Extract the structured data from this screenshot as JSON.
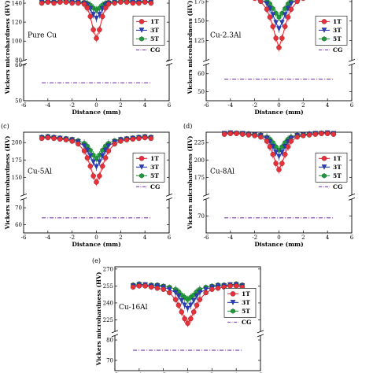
{
  "chart_data": [
    {
      "type": "scatter",
      "panel_label": "",
      "sample_label": "Pure Cu",
      "xlabel": "Distance (mm)",
      "ylabel": "Vickers microhardness (HV)",
      "xlim": [
        -6,
        6
      ],
      "xticks": [
        "-6",
        "-4",
        "-2",
        "0",
        "2",
        "4",
        "6"
      ],
      "upper_range": [
        80,
        150
      ],
      "upper_ticks": [
        "80",
        "100",
        "120",
        "140"
      ],
      "lower_range": [
        50,
        60
      ],
      "lower_ticks": [
        "50",
        "60"
      ],
      "x": [
        -4.5,
        -4,
        -3.5,
        -3,
        -2.5,
        -2,
        -1.5,
        -1,
        -0.75,
        -0.5,
        -0.25,
        0,
        0.25,
        0.5,
        0.75,
        1,
        1.5,
        2,
        2.5,
        3,
        3.5,
        4,
        4.5
      ],
      "series": [
        {
          "name": "1T",
          "values": [
            140,
            141,
            140,
            141,
            141,
            140,
            140,
            139,
            135,
            126,
            112,
            103,
            112,
            126,
            135,
            139,
            140,
            141,
            141,
            140,
            140,
            141,
            140
          ]
        },
        {
          "name": "3T",
          "values": [
            141,
            141,
            142,
            141,
            141,
            142,
            141,
            140,
            138,
            134,
            128,
            124,
            128,
            134,
            138,
            140,
            141,
            141,
            142,
            141,
            141,
            141,
            141
          ]
        },
        {
          "name": "5T",
          "values": [
            142,
            142,
            142,
            142,
            143,
            142,
            142,
            141,
            140,
            138,
            135,
            133,
            135,
            138,
            140,
            141,
            142,
            142,
            143,
            142,
            142,
            142,
            142
          ]
        }
      ],
      "cg": 55,
      "legend": [
        "1T",
        "3T",
        "5T",
        "CG"
      ],
      "legend_position": "right",
      "colors": {
        "1T": "#e8303a",
        "3T": "#2a3fbf",
        "5T": "#1f9a3a",
        "CG": "#7a3fb0"
      }
    },
    {
      "type": "scatter",
      "panel_label": "",
      "sample_label": "Cu-2.3Al",
      "xlabel": "Distance (mm)",
      "ylabel": "Vickers microhardness (HV)",
      "xlim": [
        -6,
        6
      ],
      "xticks": [
        "-6",
        "-4",
        "-2",
        "0",
        "2",
        "4",
        "6"
      ],
      "upper_range": [
        100,
        185
      ],
      "upper_ticks": [
        "125",
        "150",
        "175"
      ],
      "lower_range": [
        45,
        65
      ],
      "lower_ticks": [
        "50",
        "60"
      ],
      "x": [
        -4.5,
        -4,
        -3.5,
        -3,
        -2.5,
        -2,
        -1.5,
        -1,
        -0.75,
        -0.5,
        -0.25,
        0,
        0.25,
        0.5,
        0.75,
        1,
        1.5,
        2,
        2.5,
        3,
        3.5,
        4,
        4.5
      ],
      "series": [
        {
          "name": "1T",
          "values": [
            182,
            183,
            183,
            182,
            181,
            179,
            175,
            165,
            155,
            143,
            128,
            116,
            128,
            143,
            155,
            165,
            175,
            179,
            181,
            182,
            183,
            183,
            182
          ]
        },
        {
          "name": "3T",
          "values": [
            183,
            184,
            184,
            183,
            182,
            181,
            178,
            172,
            166,
            158,
            148,
            140,
            148,
            158,
            166,
            172,
            178,
            181,
            182,
            183,
            184,
            184,
            183
          ]
        },
        {
          "name": "5T",
          "values": [
            184,
            184,
            185,
            184,
            183,
            182,
            180,
            176,
            172,
            166,
            160,
            155,
            160,
            166,
            172,
            176,
            180,
            182,
            183,
            184,
            185,
            184,
            184
          ]
        }
      ],
      "cg": 57,
      "legend": [
        "1T",
        "3T",
        "5T",
        "CG"
      ],
      "legend_position": "right",
      "colors": {
        "1T": "#e8303a",
        "3T": "#2a3fbf",
        "5T": "#1f9a3a",
        "CG": "#7a3fb0"
      }
    },
    {
      "type": "scatter",
      "panel_label": "(c)",
      "sample_label": "Cu-5Al",
      "xlabel": "Distance (mm)",
      "ylabel": "Vickers microhardness (HV)",
      "xlim": [
        -6,
        6
      ],
      "xticks": [
        "-6",
        "-4",
        "-2",
        "0",
        "2",
        "4",
        "6"
      ],
      "upper_range": [
        125,
        215
      ],
      "upper_ticks": [
        "150",
        "175",
        "200"
      ],
      "lower_range": [
        55,
        75
      ],
      "lower_ticks": [
        "60",
        "70"
      ],
      "x": [
        -4.5,
        -4,
        -3.5,
        -3,
        -2.5,
        -2,
        -1.5,
        -1,
        -0.75,
        -0.5,
        -0.25,
        0,
        0.25,
        0.5,
        0.75,
        1,
        1.5,
        2,
        2.5,
        3,
        3.5,
        4,
        4.5
      ],
      "series": [
        {
          "name": "1T",
          "values": [
            206,
            207,
            206,
            205,
            204,
            202,
            198,
            188,
            178,
            166,
            152,
            143,
            152,
            166,
            178,
            188,
            198,
            202,
            204,
            205,
            206,
            207,
            206
          ]
        },
        {
          "name": "3T",
          "values": [
            207,
            208,
            207,
            206,
            205,
            204,
            201,
            195,
            189,
            181,
            172,
            165,
            172,
            181,
            189,
            195,
            201,
            204,
            205,
            206,
            207,
            208,
            207
          ]
        },
        {
          "name": "5T",
          "values": [
            208,
            209,
            208,
            207,
            206,
            205,
            203,
            199,
            195,
            189,
            182,
            177,
            182,
            189,
            195,
            199,
            203,
            205,
            206,
            207,
            208,
            209,
            208
          ]
        }
      ],
      "cg": 64,
      "legend": [
        "1T",
        "3T",
        "5T",
        "CG"
      ],
      "legend_position": "right",
      "colors": {
        "1T": "#e8303a",
        "3T": "#2a3fbf",
        "5T": "#1f9a3a",
        "CG": "#7a3fb0"
      }
    },
    {
      "type": "scatter",
      "panel_label": "(d)",
      "sample_label": "Cu-8Al",
      "xlabel": "Distance (mm)",
      "ylabel": "Vickers microhardness (HV)",
      "xlim": [
        -6,
        6
      ],
      "xticks": [
        "-6",
        "-4",
        "-2",
        "0",
        "2",
        "4",
        "6"
      ],
      "upper_range": [
        150,
        240
      ],
      "upper_ticks": [
        "175",
        "200",
        "225"
      ],
      "lower_range": [
        60,
        80
      ],
      "lower_ticks": [
        "70"
      ],
      "x": [
        -4.5,
        -4,
        -3.5,
        -3,
        -2.5,
        -2,
        -1.5,
        -1,
        -0.75,
        -0.5,
        -0.25,
        0,
        0.25,
        0.5,
        0.75,
        1,
        1.5,
        2,
        2.5,
        3,
        3.5,
        4,
        4.5
      ],
      "series": [
        {
          "name": "1T",
          "values": [
            237,
            238,
            238,
            237,
            236,
            235,
            233,
            227,
            219,
            208,
            195,
            186,
            195,
            208,
            219,
            227,
            233,
            235,
            236,
            237,
            238,
            238,
            237
          ]
        },
        {
          "name": "3T",
          "values": [
            238,
            239,
            238,
            238,
            237,
            236,
            235,
            231,
            226,
            219,
            211,
            205,
            211,
            219,
            226,
            231,
            235,
            236,
            237,
            238,
            238,
            239,
            238
          ]
        },
        {
          "name": "5T",
          "values": [
            238,
            239,
            239,
            238,
            238,
            237,
            236,
            233,
            230,
            225,
            219,
            214,
            219,
            225,
            230,
            233,
            236,
            237,
            238,
            238,
            239,
            239,
            238
          ]
        }
      ],
      "cg": 69,
      "legend": [
        "1T",
        "3T",
        "5T",
        "CG"
      ],
      "legend_position": "right",
      "colors": {
        "1T": "#e8303a",
        "3T": "#2a3fbf",
        "5T": "#1f9a3a",
        "CG": "#7a3fb0"
      }
    },
    {
      "type": "scatter",
      "panel_label": "(e)",
      "sample_label": "Cu-16Al",
      "xlabel": "Distance (mm)",
      "ylabel": "Vickers microhardness (HV)",
      "xlim": [
        -6,
        6
      ],
      "xticks": [
        "-6",
        "-4",
        "-2",
        "0",
        "2",
        "4",
        "6"
      ],
      "upper_range": [
        215,
        272
      ],
      "upper_ticks": [
        "225",
        "240",
        "255",
        "270"
      ],
      "lower_range": [
        65,
        82
      ],
      "lower_ticks": [
        "70",
        "80"
      ],
      "x": [
        -4.5,
        -4,
        -3.5,
        -3,
        -2.5,
        -2,
        -1.5,
        -1,
        -0.75,
        -0.5,
        -0.25,
        0,
        0.25,
        0.5,
        0.75,
        1,
        1.5,
        2,
        2.5,
        3,
        3.5,
        4,
        4.5
      ],
      "series": [
        {
          "name": "1T",
          "values": [
            254,
            255,
            255,
            254,
            253,
            252,
            249,
            243,
            238,
            232,
            226,
            222,
            226,
            232,
            238,
            243,
            249,
            252,
            253,
            254,
            255,
            255,
            254
          ]
        },
        {
          "name": "3T",
          "values": [
            255,
            256,
            256,
            255,
            255,
            254,
            252,
            249,
            246,
            242,
            238,
            235,
            238,
            242,
            246,
            249,
            252,
            254,
            255,
            255,
            256,
            256,
            255
          ]
        },
        {
          "name": "5T",
          "values": [
            256,
            257,
            256,
            256,
            256,
            255,
            254,
            252,
            250,
            247,
            245,
            243,
            245,
            247,
            250,
            252,
            254,
            255,
            256,
            256,
            256,
            257,
            256
          ]
        }
      ],
      "cg": 75,
      "legend": [
        "1T",
        "3T",
        "5T",
        "CG"
      ],
      "legend_position": "right",
      "colors": {
        "1T": "#e8303a",
        "3T": "#2a3fbf",
        "5T": "#1f9a3a",
        "CG": "#7a3fb0"
      }
    }
  ]
}
